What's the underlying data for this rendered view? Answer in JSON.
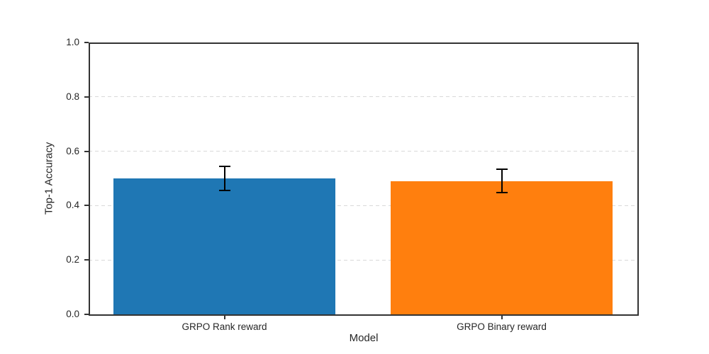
{
  "chart_data": {
    "type": "bar",
    "xlabel": "Model",
    "ylabel": "Top-1 Accuracy",
    "categories": [
      "GRPO Rank reward",
      "GRPO Binary reward"
    ],
    "values": [
      0.5,
      0.49
    ],
    "errors": [
      0.044,
      0.043
    ],
    "bar_colors": [
      "#1f77b4",
      "#ff7f0e"
    ],
    "error_bar_color": "#000000",
    "ylim": [
      0.0,
      1.0
    ],
    "yticks": [
      0.0,
      0.2,
      0.4,
      0.6,
      0.8,
      1.0
    ],
    "ytick_labels": [
      "0.0",
      "0.2",
      "0.4",
      "0.6",
      "0.8",
      "1.0"
    ],
    "xlim": [
      -0.49,
      1.49
    ],
    "bar_width_fraction": 0.8,
    "grid": {
      "axis": "y",
      "style": "dashed",
      "color": "#d9d9d9"
    },
    "legend": "none",
    "spine_color": "#333333",
    "text_color": "#262626"
  }
}
